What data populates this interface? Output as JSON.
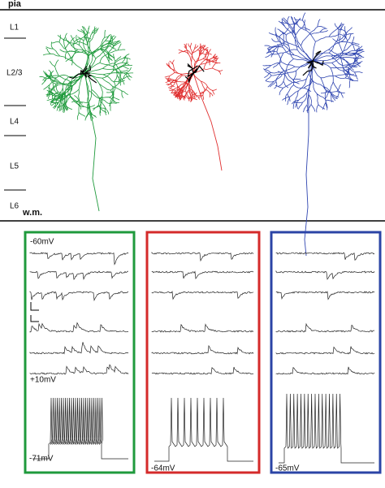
{
  "figure": {
    "pia": "pia",
    "layers": [
      "L1",
      "L2/3",
      "L4",
      "L5",
      "L6"
    ],
    "wm": "w.m.",
    "panels": [
      {
        "top_label": "-60mV",
        "mid_label": "+10mV",
        "rest_label": "-71mV"
      },
      {
        "rest_label": "-64mV"
      },
      {
        "rest_label": "-65mV"
      }
    ]
  }
}
